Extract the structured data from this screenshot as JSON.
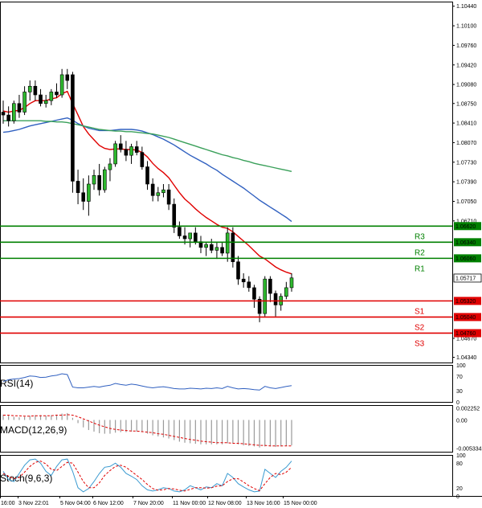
{
  "chart_data": [
    {
      "type": "candlestick",
      "symbol": "",
      "y_ticks": [
        "1.10440",
        "1.10100",
        "1.09760",
        "1.09420",
        "1.09080",
        "1.08750",
        "1.08410",
        "1.08070",
        "1.07730",
        "1.07390",
        "1.07050",
        "1.06710",
        "1.04670",
        "1.04340"
      ],
      "ylim": [
        1.0425,
        1.1052
      ],
      "current_price": "1.05717",
      "levels": [
        {
          "name": "R3",
          "value": 1.0662,
          "price_label": "1.06620",
          "color": "#008000"
        },
        {
          "name": "R2",
          "value": 1.0634,
          "price_label": "1.06340",
          "color": "#008000"
        },
        {
          "name": "R1",
          "value": 1.0606,
          "price_label": "1.06060",
          "color": "#008000"
        },
        {
          "name": "S1",
          "value": 1.0532,
          "price_label": "1.05320",
          "color": "#e00000"
        },
        {
          "name": "S2",
          "value": 1.0504,
          "price_label": "1.05040",
          "color": "#e00000"
        },
        {
          "name": "S3",
          "value": 1.0476,
          "price_label": "1.04760",
          "color": "#e00000"
        }
      ],
      "x_labels": [
        "16:00",
        "3 Nov 22:01",
        "5 Nov 04:00",
        "6 Nov 12:00",
        "7 Nov 20:00",
        "11 Nov 00:00",
        "12 Nov 08:00",
        "13 Nov 16:00",
        "15 Nov 00:00"
      ],
      "candles": [
        [
          1.086,
          1.088,
          1.084,
          1.0855
        ],
        [
          1.0855,
          1.087,
          1.0835,
          1.0845
        ],
        [
          1.0845,
          1.088,
          1.084,
          1.0875
        ],
        [
          1.0875,
          1.089,
          1.085,
          1.086
        ],
        [
          1.086,
          1.0905,
          1.0855,
          1.0895
        ],
        [
          1.0895,
          1.0915,
          1.088,
          1.0905
        ],
        [
          1.0905,
          1.0915,
          1.088,
          1.089
        ],
        [
          1.089,
          1.09,
          1.087,
          1.0875
        ],
        [
          1.0875,
          1.089,
          1.0868,
          1.088
        ],
        [
          1.088,
          1.09,
          1.0872,
          1.0895
        ],
        [
          1.0895,
          1.091,
          1.0885,
          1.089
        ],
        [
          1.089,
          1.0935,
          1.0885,
          1.0925
        ],
        [
          1.0925,
          1.0935,
          1.09,
          1.0915
        ],
        [
          1.0925,
          1.093,
          1.072,
          1.074
        ],
        [
          1.074,
          1.076,
          1.07,
          1.072
        ],
        [
          1.072,
          1.0745,
          1.069,
          1.0705
        ],
        [
          1.0705,
          1.075,
          1.068,
          1.0735
        ],
        [
          1.0735,
          1.076,
          1.0725,
          1.075
        ],
        [
          1.075,
          1.077,
          1.0715,
          1.0725
        ],
        [
          1.0725,
          1.0765,
          1.072,
          1.076
        ],
        [
          1.076,
          1.078,
          1.074,
          1.077
        ],
        [
          1.077,
          1.081,
          1.0765,
          1.0805
        ],
        [
          1.0805,
          1.082,
          1.079,
          1.0795
        ],
        [
          1.0795,
          1.081,
          1.0775,
          1.0785
        ],
        [
          1.0785,
          1.0805,
          1.077,
          1.08
        ],
        [
          1.08,
          1.081,
          1.0785,
          1.079
        ],
        [
          1.079,
          1.08,
          1.076,
          1.0765
        ],
        [
          1.0765,
          1.0775,
          1.0725,
          1.0735
        ],
        [
          1.0735,
          1.0745,
          1.0705,
          1.0715
        ],
        [
          1.0715,
          1.073,
          1.0705,
          1.072
        ],
        [
          1.072,
          1.0735,
          1.0712,
          1.0725
        ],
        [
          1.0725,
          1.0735,
          1.069,
          1.07
        ],
        [
          1.07,
          1.071,
          1.065,
          1.066
        ],
        [
          1.066,
          1.067,
          1.064,
          1.0645
        ],
        [
          1.0645,
          1.066,
          1.063,
          1.064
        ],
        [
          1.064,
          1.065,
          1.0625,
          1.065
        ],
        [
          1.065,
          1.066,
          1.063,
          1.0635
        ],
        [
          1.0635,
          1.0645,
          1.0615,
          1.0625
        ],
        [
          1.0625,
          1.0635,
          1.061,
          1.063
        ],
        [
          1.063,
          1.064,
          1.0615,
          1.062
        ],
        [
          1.062,
          1.0635,
          1.0605,
          1.0625
        ],
        [
          1.0625,
          1.0635,
          1.061,
          1.0615
        ],
        [
          1.0615,
          1.066,
          1.06,
          1.065
        ],
        [
          1.065,
          1.066,
          1.059,
          1.06
        ],
        [
          1.06,
          1.061,
          1.056,
          1.057
        ],
        [
          1.057,
          1.058,
          1.0555,
          1.0565
        ],
        [
          1.0565,
          1.0575,
          1.0548,
          1.0555
        ],
        [
          1.0555,
          1.056,
          1.052,
          1.0535
        ],
        [
          1.0535,
          1.054,
          1.0495,
          1.051
        ],
        [
          1.051,
          1.0575,
          1.0505,
          1.057
        ],
        [
          1.057,
          1.0575,
          1.053,
          1.0545
        ],
        [
          1.0545,
          1.055,
          1.0505,
          1.0525
        ],
        [
          1.0525,
          1.0545,
          1.0515,
          1.054
        ],
        [
          1.054,
          1.0565,
          1.0535,
          1.0555
        ],
        [
          1.0555,
          1.058,
          1.0548,
          1.0572
        ]
      ],
      "moving_averages": [
        {
          "name": "MA (fast)",
          "color": "#e00000",
          "values": [
            1.0862,
            1.086,
            1.0862,
            1.0863,
            1.0868,
            1.0875,
            1.088,
            1.088,
            1.088,
            1.0883,
            1.0885,
            1.0892,
            1.0896,
            1.0875,
            1.0855,
            1.0835,
            1.0822,
            1.0812,
            1.0802,
            1.0797,
            1.0795,
            1.0796,
            1.0796,
            1.0795,
            1.0795,
            1.0794,
            1.079,
            1.0782,
            1.0771,
            1.0762,
            1.0755,
            1.0746,
            1.0733,
            1.072,
            1.0709,
            1.0701,
            1.0692,
            1.0684,
            1.0677,
            1.0671,
            1.0665,
            1.066,
            1.0658,
            1.0652,
            1.0644,
            1.0636,
            1.0628,
            1.0619,
            1.061,
            1.0605,
            1.0598,
            1.0591,
            1.0586,
            1.0582,
            1.0579
          ]
        },
        {
          "name": "MA (medium)",
          "color": "#3060c0",
          "values": [
            1.0825,
            1.0826,
            1.0828,
            1.083,
            1.0833,
            1.0836,
            1.0838,
            1.084,
            1.0842,
            1.0844,
            1.0846,
            1.0848,
            1.085,
            1.0846,
            1.084,
            1.0836,
            1.0832,
            1.083,
            1.0828,
            1.0828,
            1.0828,
            1.0829,
            1.083,
            1.083,
            1.083,
            1.0829,
            1.0827,
            1.0824,
            1.0821,
            1.0817,
            1.0813,
            1.0808,
            1.0803,
            1.0797,
            1.0791,
            1.0785,
            1.078,
            1.0775,
            1.077,
            1.0764,
            1.0759,
            1.0752,
            1.0746,
            1.074,
            1.0734,
            1.0728,
            1.0721,
            1.0714,
            1.0707,
            1.0701,
            1.0695,
            1.0689,
            1.0683,
            1.0677,
            1.067
          ]
        },
        {
          "name": "MA (slow)",
          "color": "#3aa05a",
          "values": [
            1.0845,
            1.0845,
            1.0845,
            1.0845,
            1.0845,
            1.0845,
            1.0845,
            1.0845,
            1.0844,
            1.0844,
            1.0843,
            1.0843,
            1.0842,
            1.084,
            1.0838,
            1.0836,
            1.0834,
            1.0832,
            1.083,
            1.0829,
            1.0828,
            1.0827,
            1.0827,
            1.0826,
            1.0826,
            1.0825,
            1.0824,
            1.0823,
            1.0822,
            1.082,
            1.0818,
            1.0816,
            1.0813,
            1.081,
            1.0807,
            1.0804,
            1.0801,
            1.0798,
            1.0795,
            1.0792,
            1.0789,
            1.0786,
            1.0784,
            1.0781,
            1.0779,
            1.0776,
            1.0774,
            1.0771,
            1.0769,
            1.0767,
            1.0765,
            1.0763,
            1.0761,
            1.0759,
            1.0757
          ]
        }
      ]
    },
    {
      "type": "line",
      "name": "RSI(14)",
      "y_ticks": [
        "100",
        "70",
        "30",
        "0"
      ],
      "ylim": [
        0,
        100
      ],
      "series": [
        {
          "color": "#3060c0",
          "values": [
            55,
            60,
            62,
            63,
            66,
            70,
            69,
            66,
            67,
            70,
            72,
            76,
            74,
            40,
            38,
            38,
            40,
            42,
            40,
            43,
            45,
            50,
            47,
            45,
            48,
            46,
            43,
            40,
            38,
            40,
            41,
            39,
            36,
            35,
            35,
            37,
            36,
            35,
            37,
            36,
            38,
            36,
            42,
            38,
            35,
            36,
            35,
            33,
            32,
            42,
            38,
            36,
            39,
            42,
            44
          ]
        }
      ]
    },
    {
      "type": "bar",
      "name": "MACD(12,26,9)",
      "y_ticks": [
        "0.002252",
        "0.00",
        "-0.005334"
      ],
      "ylim": [
        -0.006,
        0.0028
      ],
      "histogram": [
        0.001,
        0.0008,
        0.0006,
        0.0005,
        0.0006,
        0.0008,
        0.0009,
        0.0009,
        0.0008,
        0.0009,
        0.001,
        0.0012,
        0.0013,
        0.0004,
        -0.0006,
        -0.0014,
        -0.0019,
        -0.0022,
        -0.0025,
        -0.0026,
        -0.0026,
        -0.0024,
        -0.0023,
        -0.0023,
        -0.0022,
        -0.0022,
        -0.0023,
        -0.0026,
        -0.0029,
        -0.0031,
        -0.0033,
        -0.0035,
        -0.0038,
        -0.0041,
        -0.0043,
        -0.0044,
        -0.0045,
        -0.0046,
        -0.0046,
        -0.0046,
        -0.0046,
        -0.0046,
        -0.0044,
        -0.0044,
        -0.0046,
        -0.0048,
        -0.0049,
        -0.005,
        -0.0052,
        -0.005,
        -0.005,
        -0.0051,
        -0.005,
        -0.0049,
        -0.0048
      ],
      "signal": {
        "color": "#e00000",
        "values": [
          0.0009,
          0.0009,
          0.0008,
          0.0008,
          0.0007,
          0.0007,
          0.0008,
          0.0008,
          0.0008,
          0.0008,
          0.0009,
          0.0009,
          0.001,
          0.0009,
          0.0006,
          0.0002,
          -0.0002,
          -0.0006,
          -0.001,
          -0.0013,
          -0.0016,
          -0.0018,
          -0.0019,
          -0.002,
          -0.0021,
          -0.0021,
          -0.0022,
          -0.0023,
          -0.0024,
          -0.0026,
          -0.0027,
          -0.0029,
          -0.0031,
          -0.0033,
          -0.0035,
          -0.0037,
          -0.0038,
          -0.004,
          -0.0041,
          -0.0042,
          -0.0043,
          -0.0043,
          -0.0043,
          -0.0044,
          -0.0044,
          -0.0045,
          -0.0046,
          -0.0047,
          -0.0048,
          -0.0048,
          -0.0049,
          -0.0049,
          -0.0049,
          -0.0049,
          -0.0049
        ]
      }
    },
    {
      "type": "line",
      "name": "Stoch(9,6,3)",
      "y_ticks": [
        "100",
        "80",
        "20",
        "0"
      ],
      "ylim": [
        0,
        100
      ],
      "series": [
        {
          "color": "#3a9ad0",
          "values": [
            60,
            40,
            35,
            55,
            75,
            88,
            90,
            80,
            60,
            50,
            72,
            88,
            90,
            60,
            20,
            10,
            18,
            35,
            55,
            70,
            72,
            80,
            70,
            55,
            48,
            40,
            25,
            15,
            12,
            15,
            20,
            18,
            12,
            10,
            15,
            25,
            20,
            15,
            22,
            20,
            30,
            25,
            55,
            45,
            30,
            22,
            15,
            10,
            12,
            65,
            55,
            45,
            60,
            70,
            85
          ]
        },
        {
          "color": "#e00000",
          "values": [
            55,
            48,
            42,
            45,
            58,
            72,
            82,
            85,
            78,
            65,
            62,
            72,
            82,
            80,
            58,
            35,
            20,
            20,
            32,
            50,
            62,
            72,
            75,
            70,
            60,
            50,
            40,
            28,
            18,
            14,
            15,
            18,
            17,
            14,
            12,
            16,
            20,
            20,
            19,
            20,
            24,
            25,
            35,
            42,
            42,
            34,
            25,
            18,
            13,
            30,
            45,
            55,
            52,
            58,
            70
          ]
        }
      ]
    }
  ]
}
